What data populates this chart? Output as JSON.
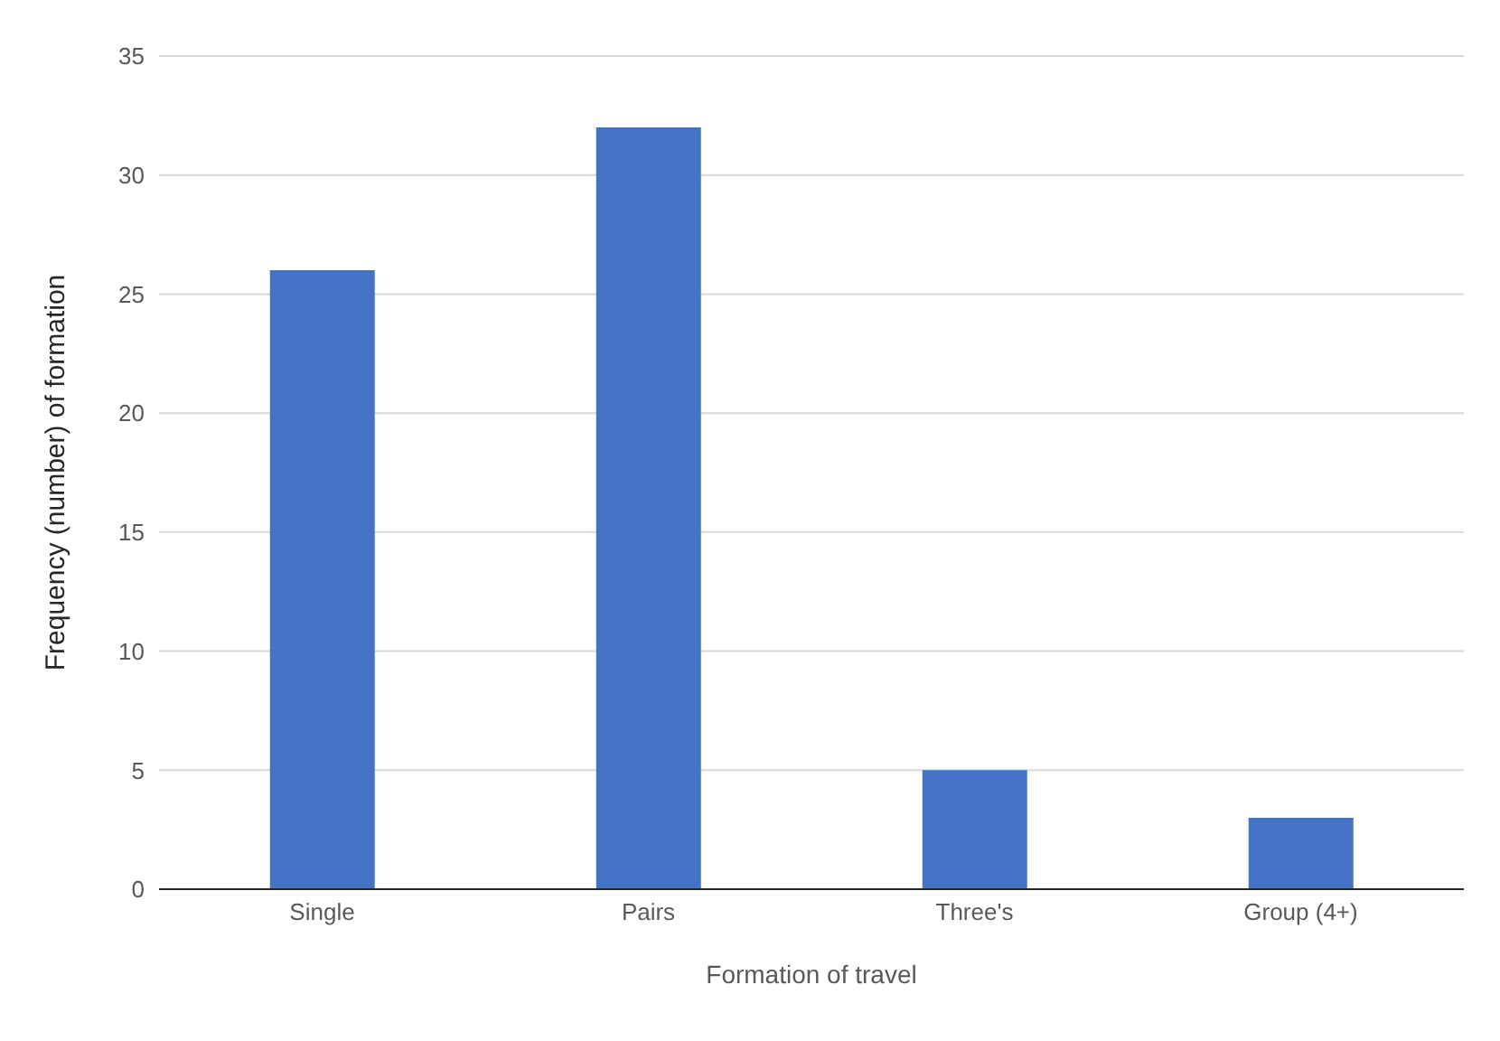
{
  "chart_data": {
    "type": "bar",
    "categories": [
      "Single",
      "Pairs",
      "Three's",
      "Group (4+)"
    ],
    "values": [
      26,
      32,
      5,
      3
    ],
    "color": "#4472c4",
    "xlabel": "Formation of travel",
    "ylabel": "Frequency (number) of formation",
    "ylim": [
      0,
      35
    ],
    "yticks": [
      0,
      5,
      10,
      15,
      20,
      25,
      30,
      35
    ],
    "grid": "y"
  }
}
